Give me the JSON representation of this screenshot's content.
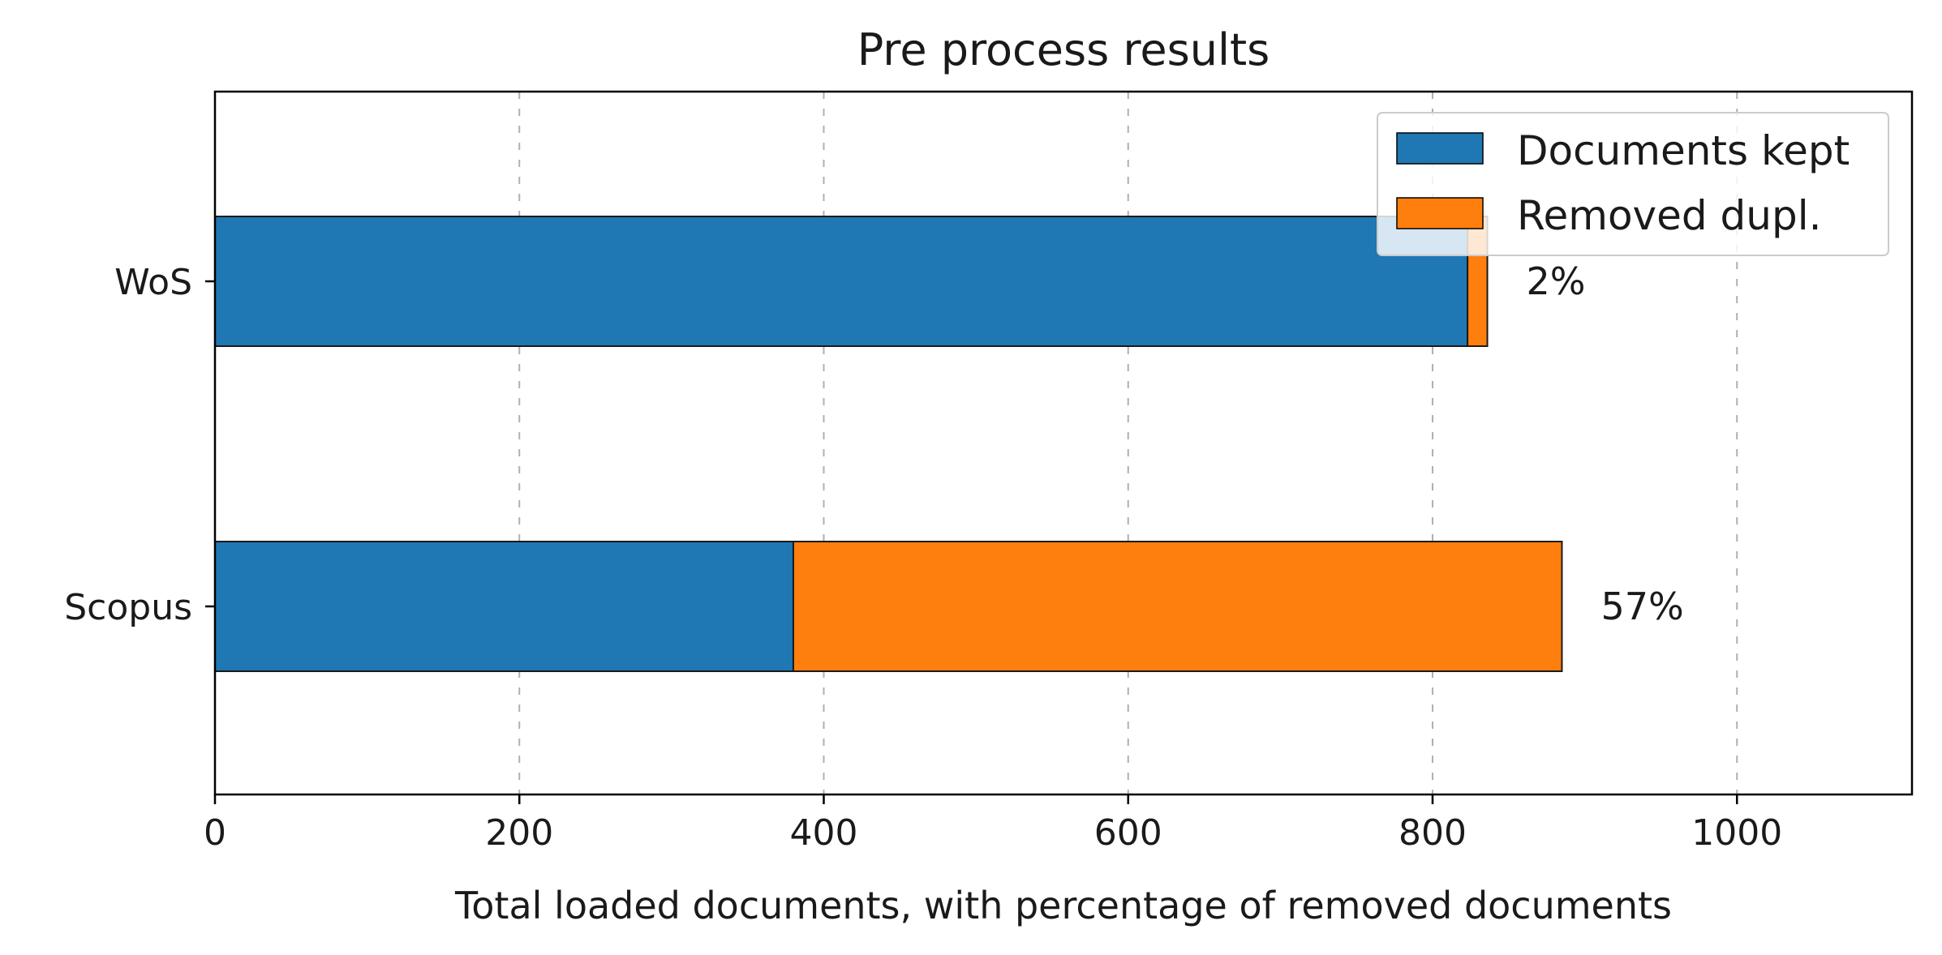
{
  "chart_data": {
    "type": "bar",
    "orientation": "horizontal",
    "stacked": true,
    "title": "Pre process results",
    "xlabel": "Total loaded documents, with percentage of removed documents",
    "ylabel": "",
    "categories": [
      "WoS",
      "Scopus"
    ],
    "series": [
      {
        "name": "Documents kept",
        "color": "#1f77b4",
        "values": [
          823,
          380
        ]
      },
      {
        "name": "Removed dupl.",
        "color": "#ff7f0e",
        "values": [
          13,
          505
        ]
      }
    ],
    "data_labels": [
      "2%",
      "57%"
    ],
    "xlim": [
      0,
      1115
    ],
    "xticks": [
      0,
      200,
      400,
      600,
      800,
      1000
    ],
    "grid": "x dashed",
    "legend_position": "top-right"
  }
}
